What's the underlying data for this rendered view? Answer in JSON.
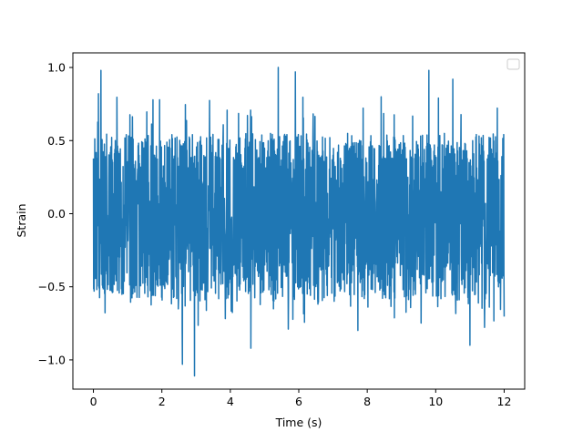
{
  "chart_data": {
    "type": "line",
    "title": "",
    "xlabel": "Time (s)",
    "ylabel": "Strain",
    "xlim": [
      -0.6,
      12.6
    ],
    "ylim": [
      -1.2,
      1.1
    ],
    "xticks": [
      0,
      2,
      4,
      6,
      8,
      10,
      12
    ],
    "xtick_labels": [
      "0",
      "2",
      "4",
      "6",
      "8",
      "10",
      "12"
    ],
    "yticks": [
      -1.0,
      -0.5,
      0.0,
      0.5,
      1.0
    ],
    "ytick_labels": [
      "−1.0",
      "−0.5",
      "0.0",
      "0.5",
      "1.0"
    ],
    "grid": false,
    "legend": {
      "placement": "top-right",
      "entries": []
    },
    "series": [
      {
        "color": "#1f77b4",
        "description": "dense noise-like strain signal, 0 to 12 s",
        "x_range": [
          0,
          12
        ],
        "typical_band": [
          -0.6,
          0.55
        ],
        "notable_points": [
          {
            "x": 0.15,
            "y": 0.82
          },
          {
            "x": 0.22,
            "y": 0.98
          },
          {
            "x": 2.6,
            "y": -1.03
          },
          {
            "x": 2.95,
            "y": -1.11
          },
          {
            "x": 4.6,
            "y": -0.92
          },
          {
            "x": 5.4,
            "y": 1.0
          },
          {
            "x": 5.9,
            "y": 0.97
          },
          {
            "x": 9.8,
            "y": 0.98
          },
          {
            "x": 10.5,
            "y": 0.92
          },
          {
            "x": 11.0,
            "y": -0.9
          }
        ]
      }
    ]
  }
}
